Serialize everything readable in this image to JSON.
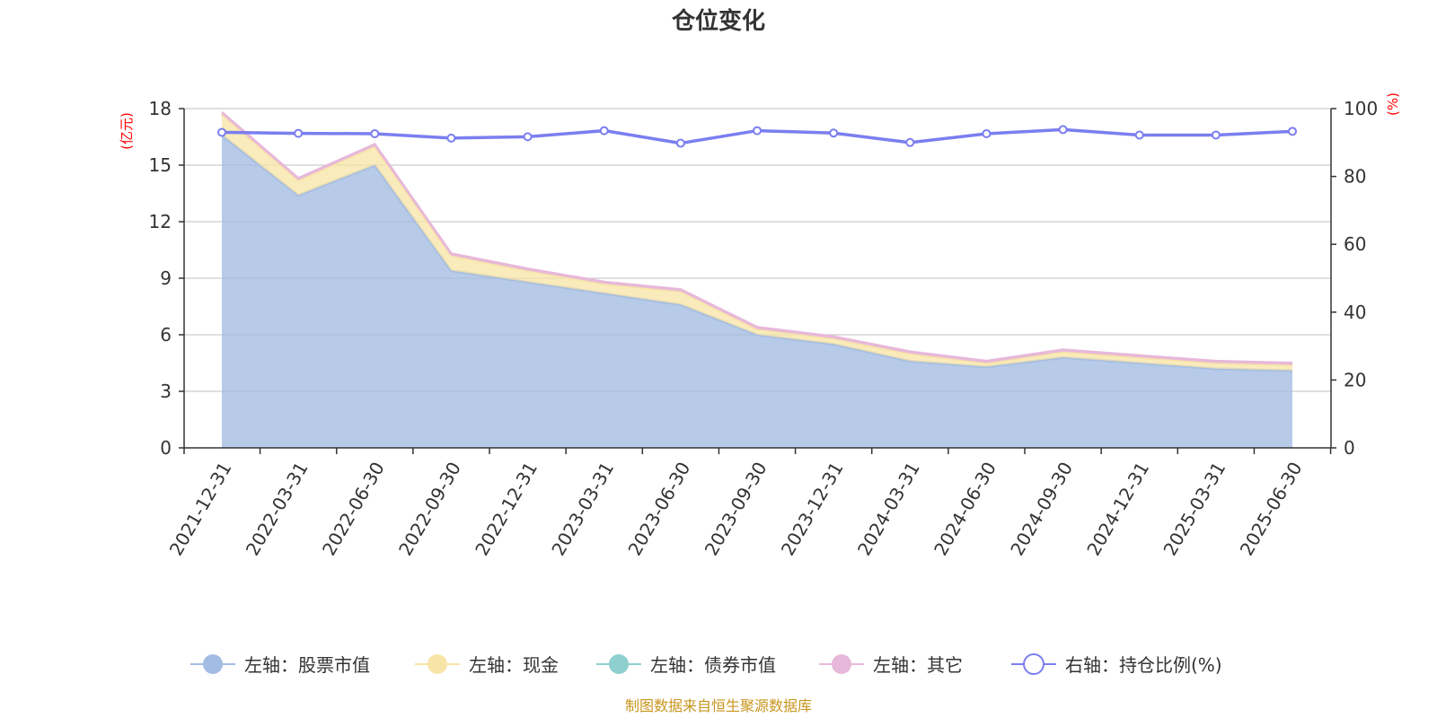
{
  "title": "仓位变化",
  "source_text": "制图数据来自恒生聚源数据库",
  "colors": {
    "stock": "#a3bce3",
    "cash": "#f8e4a6",
    "bond": "#8ecfd0",
    "other": "#e7b8da",
    "ratio": "#7b7ef0",
    "grid": "#cccccc",
    "axis": "#333333",
    "source": "#c8951e",
    "unit": "#ff0000"
  },
  "chart_data": {
    "type": "area",
    "title": "仓位变化",
    "x": [
      "2021-12-31",
      "2022-03-31",
      "2022-06-30",
      "2022-09-30",
      "2022-12-31",
      "2023-03-31",
      "2023-06-30",
      "2023-09-30",
      "2023-12-31",
      "2024-03-31",
      "2024-06-30",
      "2024-09-30",
      "2024-12-31",
      "2025-03-31",
      "2025-06-30"
    ],
    "left_axis": {
      "unit": "(亿元)",
      "ylim": [
        0,
        18
      ],
      "ticks": [
        0,
        3,
        6,
        9,
        12,
        15,
        18
      ]
    },
    "right_axis": {
      "unit": "(%)",
      "ylim": [
        0,
        100
      ],
      "ticks": [
        0,
        20,
        40,
        60,
        80,
        100
      ]
    },
    "stacked": true,
    "series": [
      {
        "name": "左轴：股票市值",
        "axis": "left",
        "color_key": "stock",
        "values": [
          16.6,
          13.4,
          15.0,
          9.4,
          8.8,
          8.2,
          7.6,
          6.0,
          5.5,
          4.6,
          4.3,
          4.8,
          4.5,
          4.2,
          4.1
        ]
      },
      {
        "name": "左轴：现金",
        "axis": "left",
        "color_key": "cash",
        "values": [
          1.1,
          0.8,
          1.0,
          0.8,
          0.6,
          0.5,
          0.7,
          0.3,
          0.3,
          0.4,
          0.2,
          0.3,
          0.3,
          0.3,
          0.3
        ]
      },
      {
        "name": "左轴：债券市值",
        "axis": "left",
        "color_key": "bond",
        "values": [
          0,
          0,
          0,
          0,
          0,
          0,
          0,
          0,
          0,
          0,
          0,
          0,
          0,
          0,
          0
        ]
      },
      {
        "name": "左轴：其它",
        "axis": "left",
        "color_key": "other",
        "values": [
          0.1,
          0.1,
          0.1,
          0.1,
          0.1,
          0.1,
          0.1,
          0.1,
          0.1,
          0.1,
          0.1,
          0.1,
          0.1,
          0.1,
          0.1
        ]
      },
      {
        "name": "右轴：持仓比例(%)",
        "axis": "right",
        "type": "line",
        "color_key": "ratio",
        "values": [
          93.0,
          92.7,
          92.6,
          91.3,
          91.7,
          93.5,
          89.8,
          93.5,
          92.8,
          90.0,
          92.6,
          93.8,
          92.2,
          92.2,
          93.3
        ]
      }
    ],
    "legend_position": "bottom-center",
    "grid": true
  }
}
